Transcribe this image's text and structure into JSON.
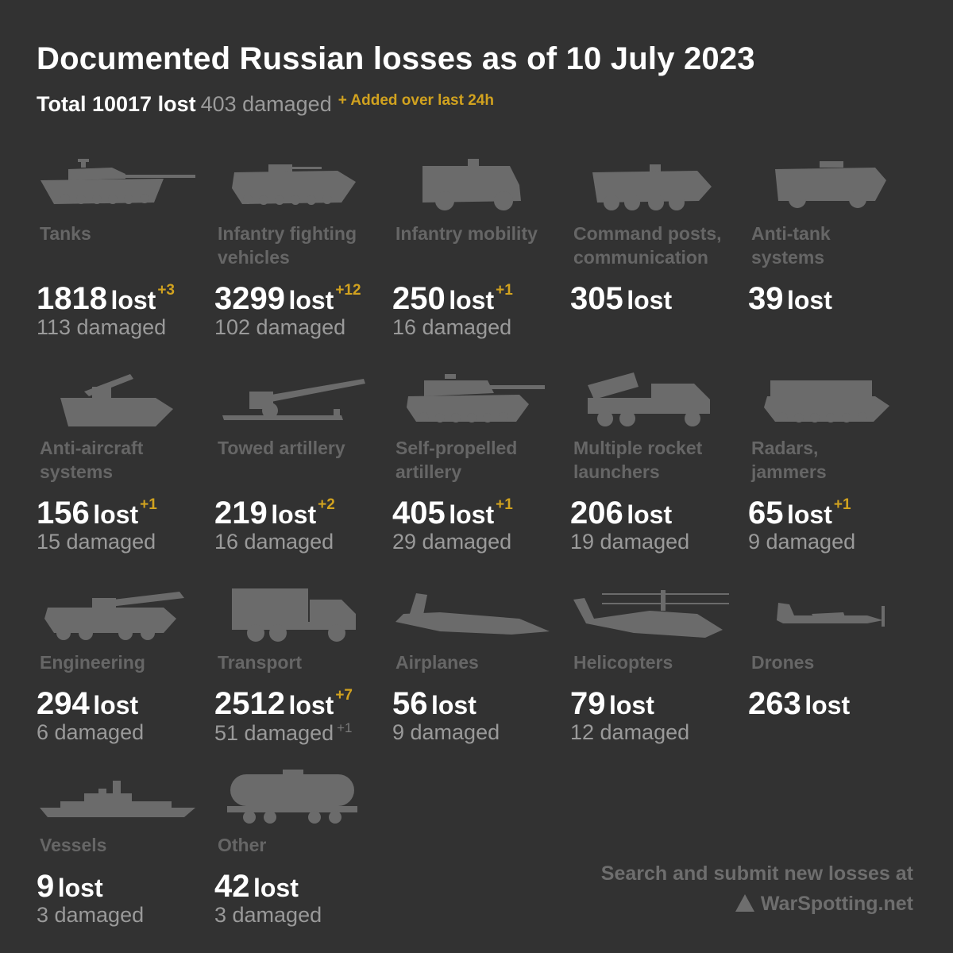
{
  "header": {
    "title": "Documented Russian losses as of 10 July 2023",
    "total": "Total 10017 lost",
    "damaged": "403 damaged",
    "added_note": "+ Added over last 24h"
  },
  "categories": [
    {
      "label1": "Tanks",
      "label2": "",
      "lost": "1818",
      "lost_word": "lost",
      "delta": "+3",
      "damaged": "113 damaged",
      "damaged_delta": "",
      "icon": "tank-icon"
    },
    {
      "label1": "Infantry fighting",
      "label2": "vehicles",
      "lost": "3299",
      "lost_word": "lost",
      "delta": "+12",
      "damaged": "102 damaged",
      "damaged_delta": "",
      "icon": "ifv-icon"
    },
    {
      "label1": "Infantry mobility",
      "label2": "",
      "lost": "250",
      "lost_word": "lost",
      "delta": "+1",
      "damaged": "16 damaged",
      "damaged_delta": "",
      "icon": "mrap-icon"
    },
    {
      "label1": "Command posts,",
      "label2": "communication",
      "lost": "305",
      "lost_word": "lost",
      "delta": "",
      "damaged": "",
      "damaged_delta": "",
      "icon": "command-vehicle-icon"
    },
    {
      "label1": "Anti-tank",
      "label2": "systems",
      "lost": "39",
      "lost_word": "lost",
      "delta": "",
      "damaged": "",
      "damaged_delta": "",
      "icon": "anti-tank-vehicle-icon"
    },
    {
      "label1": "Anti-aircraft",
      "label2": "systems",
      "lost": "156",
      "lost_word": "lost",
      "delta": "+1",
      "damaged": "15 damaged",
      "damaged_delta": "",
      "icon": "anti-aircraft-icon"
    },
    {
      "label1": "Towed artillery",
      "label2": "",
      "lost": "219",
      "lost_word": "lost",
      "delta": "+2",
      "damaged": "16 damaged",
      "damaged_delta": "",
      "icon": "towed-gun-icon"
    },
    {
      "label1": "Self-propelled",
      "label2": "artillery",
      "lost": "405",
      "lost_word": "lost",
      "delta": "+1",
      "damaged": "29 damaged",
      "damaged_delta": "",
      "icon": "spg-icon"
    },
    {
      "label1": "Multiple rocket",
      "label2": "launchers",
      "lost": "206",
      "lost_word": "lost",
      "delta": "",
      "damaged": "19 damaged",
      "damaged_delta": "",
      "icon": "mlrs-icon"
    },
    {
      "label1": "Radars,",
      "label2": "jammers",
      "lost": "65",
      "lost_word": "lost",
      "delta": "+1",
      "damaged": "9 damaged",
      "damaged_delta": "",
      "icon": "radar-vehicle-icon"
    },
    {
      "label1": "Engineering",
      "label2": "",
      "lost": "294",
      "lost_word": "lost",
      "delta": "",
      "damaged": "6 damaged",
      "damaged_delta": "",
      "icon": "engineering-vehicle-icon"
    },
    {
      "label1": "Transport",
      "label2": "",
      "lost": "2512",
      "lost_word": "lost",
      "delta": "+7",
      "damaged": "51 damaged",
      "damaged_delta": "+1",
      "icon": "truck-icon"
    },
    {
      "label1": "Airplanes",
      "label2": "",
      "lost": "56",
      "lost_word": "lost",
      "delta": "",
      "damaged": "9 damaged",
      "damaged_delta": "",
      "icon": "airplane-icon"
    },
    {
      "label1": "Helicopters",
      "label2": "",
      "lost": "79",
      "lost_word": "lost",
      "delta": "",
      "damaged": "12 damaged",
      "damaged_delta": "",
      "icon": "helicopter-icon"
    },
    {
      "label1": "Drones",
      "label2": "",
      "lost": "263",
      "lost_word": "lost",
      "delta": "",
      "damaged": "",
      "damaged_delta": "",
      "icon": "drone-icon"
    },
    {
      "label1": "Vessels",
      "label2": "",
      "lost": "9",
      "lost_word": "lost",
      "delta": "",
      "damaged": "3 damaged",
      "damaged_delta": "",
      "icon": "ship-icon"
    },
    {
      "label1": "Other",
      "label2": "",
      "lost": "42",
      "lost_word": "lost",
      "delta": "",
      "damaged": "3 damaged",
      "damaged_delta": "",
      "icon": "tank-wagon-icon"
    }
  ],
  "footer": {
    "line1": "Search and submit new losses at",
    "line2": "WarSpotting.net",
    "logo_icon": "warspotting-logo-icon"
  },
  "colors": {
    "background": "#323232",
    "accent": "#d1a21f",
    "label": "#666666",
    "damaged": "#9a9a9a",
    "silhouette": "#6b6b6b"
  }
}
